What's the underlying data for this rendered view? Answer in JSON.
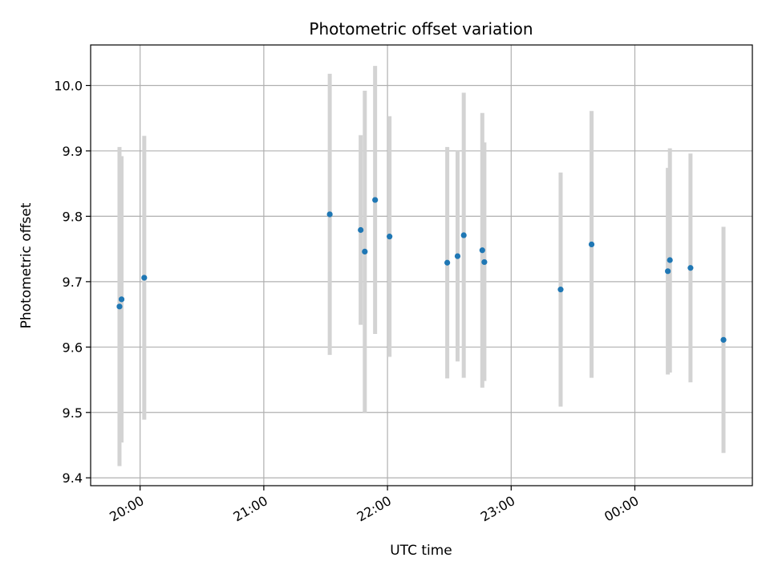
{
  "chart_data": {
    "type": "scatter",
    "title": "Photometric offset variation",
    "xlabel": "UTC time",
    "ylabel": "Photometric offset",
    "x_ticks": [
      "20:00",
      "21:00",
      "22:00",
      "23:00",
      "00:00"
    ],
    "y_ticks": [
      "9.4",
      "9.5",
      "9.6",
      "9.7",
      "9.8",
      "9.9",
      "10.0"
    ],
    "xlim": [
      "19:36",
      "00:57"
    ],
    "ylim": [
      9.388,
      10.062
    ],
    "grid": true,
    "legend": "none",
    "colors": {
      "marker": "#1f77b4",
      "errorbar": "#d3d3d3",
      "grid": "#b0b0b0"
    },
    "points": [
      {
        "t": "19:50",
        "y": 9.662,
        "ylo": 9.418,
        "yhi": 9.906
      },
      {
        "t": "19:51",
        "y": 9.673,
        "ylo": 9.454,
        "yhi": 9.892
      },
      {
        "t": "20:02",
        "y": 9.706,
        "ylo": 9.489,
        "yhi": 9.923
      },
      {
        "t": "21:32",
        "y": 9.803,
        "ylo": 9.588,
        "yhi": 10.018
      },
      {
        "t": "21:47",
        "y": 9.779,
        "ylo": 9.634,
        "yhi": 9.924
      },
      {
        "t": "21:49",
        "y": 9.746,
        "ylo": 9.5,
        "yhi": 9.992
      },
      {
        "t": "21:54",
        "y": 9.825,
        "ylo": 9.62,
        "yhi": 10.03
      },
      {
        "t": "22:01",
        "y": 9.769,
        "ylo": 9.585,
        "yhi": 9.953
      },
      {
        "t": "22:29",
        "y": 9.729,
        "ylo": 9.552,
        "yhi": 9.906
      },
      {
        "t": "22:34",
        "y": 9.739,
        "ylo": 9.578,
        "yhi": 9.901
      },
      {
        "t": "22:37",
        "y": 9.771,
        "ylo": 9.553,
        "yhi": 9.989
      },
      {
        "t": "22:46",
        "y": 9.748,
        "ylo": 9.538,
        "yhi": 9.958
      },
      {
        "t": "22:47",
        "y": 9.73,
        "ylo": 9.548,
        "yhi": 9.913
      },
      {
        "t": "23:24",
        "y": 9.688,
        "ylo": 9.509,
        "yhi": 9.867
      },
      {
        "t": "23:39",
        "y": 9.757,
        "ylo": 9.553,
        "yhi": 9.961
      },
      {
        "t": "00:16",
        "y": 9.716,
        "ylo": 9.558,
        "yhi": 9.874
      },
      {
        "t": "00:17",
        "y": 9.733,
        "ylo": 9.561,
        "yhi": 9.904
      },
      {
        "t": "00:27",
        "y": 9.721,
        "ylo": 9.546,
        "yhi": 9.896
      },
      {
        "t": "00:43",
        "y": 9.611,
        "ylo": 9.438,
        "yhi": 9.784
      }
    ]
  }
}
